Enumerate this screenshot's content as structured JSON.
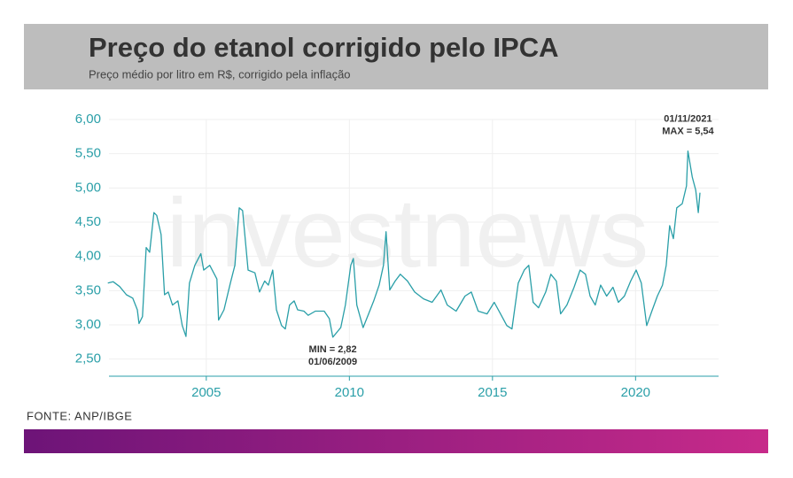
{
  "chart_data": {
    "type": "line",
    "title": "Preço do etanol corrigido pelo IPCA",
    "subtitle": "Preço médio por litro em R$, corrigido pela inflação",
    "source": "FONTE: ANP/IBGE",
    "watermark": "investnews",
    "color": "#2a9fa8",
    "grid": true,
    "x": [
      2001.56,
      2001.75,
      2001.97,
      2002.21,
      2002.43,
      2002.59,
      2002.65,
      2002.77,
      2002.9,
      2003.02,
      2003.17,
      2003.27,
      2003.42,
      2003.54,
      2003.67,
      2003.82,
      2004.01,
      2004.16,
      2004.29,
      2004.41,
      2004.6,
      2004.81,
      2004.91,
      2005.12,
      2005.37,
      2005.43,
      2005.62,
      2005.84,
      2006.0,
      2006.15,
      2006.27,
      2006.46,
      2006.7,
      2006.86,
      2007.04,
      2007.17,
      2007.32,
      2007.45,
      2007.63,
      2007.76,
      2007.91,
      2008.07,
      2008.19,
      2008.41,
      2008.56,
      2008.81,
      2009.12,
      2009.3,
      2009.42,
      2009.7,
      2009.86,
      2010.05,
      2010.14,
      2010.26,
      2010.48,
      2010.67,
      2010.85,
      2011.04,
      2011.19,
      2011.28,
      2011.41,
      2011.6,
      2011.78,
      2012.03,
      2012.28,
      2012.59,
      2012.89,
      2013.2,
      2013.42,
      2013.73,
      2014.04,
      2014.26,
      2014.5,
      2014.81,
      2015.06,
      2015.28,
      2015.5,
      2015.68,
      2015.9,
      2016.11,
      2016.27,
      2016.42,
      2016.61,
      2016.86,
      2017.04,
      2017.23,
      2017.38,
      2017.6,
      2017.85,
      2018.06,
      2018.25,
      2018.41,
      2018.59,
      2018.78,
      2018.99,
      2019.21,
      2019.4,
      2019.61,
      2019.83,
      2020.02,
      2020.2,
      2020.39,
      2020.57,
      2020.76,
      2020.94,
      2021.07,
      2021.19,
      2021.32,
      2021.44,
      2021.63,
      2021.78,
      2021.83,
      2021.98,
      2022.1,
      2022.19,
      2022.25
    ],
    "values": [
      3.61,
      3.63,
      3.56,
      3.44,
      3.39,
      3.22,
      3.02,
      3.12,
      4.13,
      4.06,
      4.64,
      4.6,
      4.32,
      3.44,
      3.48,
      3.29,
      3.35,
      2.99,
      2.83,
      3.61,
      3.87,
      4.04,
      3.8,
      3.87,
      3.67,
      3.07,
      3.22,
      3.61,
      3.87,
      4.71,
      4.67,
      3.8,
      3.76,
      3.48,
      3.64,
      3.58,
      3.8,
      3.22,
      2.99,
      2.94,
      3.29,
      3.35,
      3.22,
      3.2,
      3.14,
      3.2,
      3.2,
      3.09,
      2.82,
      2.96,
      3.29,
      3.87,
      3.97,
      3.29,
      2.96,
      3.16,
      3.35,
      3.58,
      3.87,
      4.36,
      3.51,
      3.64,
      3.74,
      3.64,
      3.48,
      3.38,
      3.33,
      3.51,
      3.29,
      3.2,
      3.42,
      3.48,
      3.2,
      3.16,
      3.33,
      3.16,
      2.99,
      2.94,
      3.61,
      3.8,
      3.87,
      3.33,
      3.25,
      3.48,
      3.74,
      3.64,
      3.16,
      3.29,
      3.55,
      3.8,
      3.74,
      3.42,
      3.29,
      3.58,
      3.42,
      3.55,
      3.33,
      3.42,
      3.64,
      3.8,
      3.61,
      2.99,
      3.2,
      3.42,
      3.58,
      3.87,
      4.45,
      4.26,
      4.71,
      4.77,
      5.03,
      5.54,
      5.16,
      4.97,
      4.64,
      4.93
    ],
    "xlim": [
      2001.6,
      2022.9
    ],
    "xticks": [
      2005,
      2010,
      2015,
      2020
    ],
    "ylim": [
      2.25,
      6.0
    ],
    "yticks": [
      {
        "value": 2.5,
        "label": "2,50"
      },
      {
        "value": 3.0,
        "label": "3,00"
      },
      {
        "value": 3.5,
        "label": "3,50"
      },
      {
        "value": 4.0,
        "label": "4,00"
      },
      {
        "value": 4.5,
        "label": "4,50"
      },
      {
        "value": 5.0,
        "label": "5,00"
      },
      {
        "value": 5.5,
        "label": "5,50"
      },
      {
        "value": 6.0,
        "label": "6,00"
      }
    ],
    "annotations": [
      {
        "lines": [
          "01/11/2021",
          "MAX = 5,54"
        ],
        "x": 2021.83,
        "y": 5.54,
        "position": "above"
      },
      {
        "lines": [
          "MIN = 2,82",
          "01/06/2009"
        ],
        "x": 2009.42,
        "y": 2.82,
        "position": "below"
      }
    ]
  }
}
